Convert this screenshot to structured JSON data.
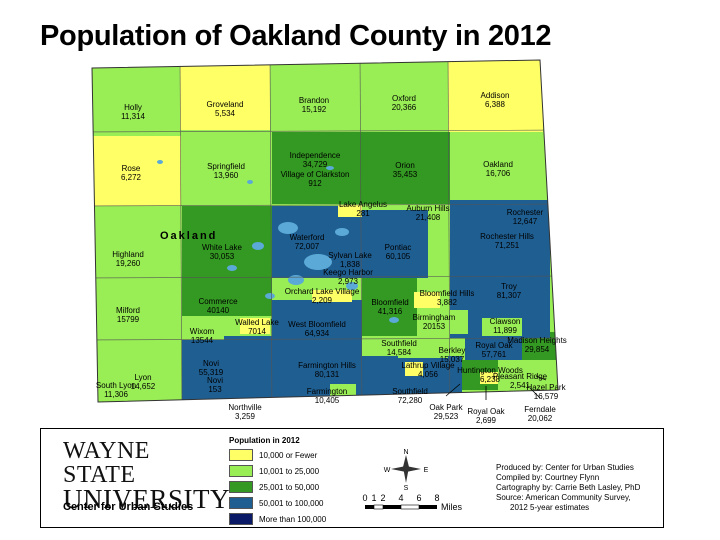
{
  "title": "Population of Oakland County in 2012",
  "county_label": "Oakland",
  "legend": {
    "title": "Population in 2012",
    "classes": [
      {
        "label": "10,000 or Fewer",
        "color": "#ffff66"
      },
      {
        "label": "10,001 to 25,000",
        "color": "#99ee55"
      },
      {
        "label": "25,001 to 50,000",
        "color": "#339922"
      },
      {
        "label": "50,001 to 100,000",
        "color": "#1f5e91"
      },
      {
        "label": "More than 100,000",
        "color": "#0a1a66"
      }
    ]
  },
  "logo": {
    "line1": "WAYNE STATE",
    "line2": "UNIVERSITY",
    "subtitle": "Center for Urban Studies"
  },
  "compass": {
    "n": "N",
    "s": "S",
    "e": "E",
    "w": "W"
  },
  "scale": {
    "ticks": [
      "0",
      "1",
      "2",
      "4",
      "6",
      "8"
    ],
    "unit": "Miles"
  },
  "credits": [
    "Produced by: Center for Urban Studies",
    "Compiled by: Courtney Flynn",
    "Cartography by: Carrie Beth Lasley, PhD",
    "Source: American Community Survey,",
    "2012 5-year estimates"
  ],
  "places": [
    {
      "name": "Holly",
      "pop": "11,314"
    },
    {
      "name": "Groveland",
      "pop": "5,534"
    },
    {
      "name": "Brandon",
      "pop": "15,192"
    },
    {
      "name": "Oxford",
      "pop": "20,366"
    },
    {
      "name": "Addison",
      "pop": "6,388"
    },
    {
      "name": "Rose",
      "pop": "6,272"
    },
    {
      "name": "Springfield",
      "pop": "13,960"
    },
    {
      "name": "Independence",
      "pop": "34,729"
    },
    {
      "name": "Village of Clarkston",
      "pop": "912"
    },
    {
      "name": "Orion",
      "pop": "35,453"
    },
    {
      "name": "Oakland",
      "pop": "16,706"
    },
    {
      "name": "Lake Angelus",
      "pop": "281"
    },
    {
      "name": "Auburn Hills",
      "pop": "21,408"
    },
    {
      "name": "Rochester",
      "pop": "12,647"
    },
    {
      "name": "Rochester Hills",
      "pop": "71,251"
    },
    {
      "name": "Highland",
      "pop": "19,260"
    },
    {
      "name": "White Lake",
      "pop": "30,053"
    },
    {
      "name": "Waterford",
      "pop": "72,007"
    },
    {
      "name": "Sylvan Lake",
      "pop": "1,838"
    },
    {
      "name": "Pontiac",
      "pop": "60,105"
    },
    {
      "name": "Keego Harbor",
      "pop": "2,973"
    },
    {
      "name": "Orchard Lake Village",
      "pop": "2,209"
    },
    {
      "name": "Bloomfield",
      "pop": "41,316"
    },
    {
      "name": "Bloomfield Hills",
      "pop": "3,882"
    },
    {
      "name": "Troy",
      "pop": "81,307"
    },
    {
      "name": "Milford",
      "pop": "15799"
    },
    {
      "name": "Commerce",
      "pop": "40140"
    },
    {
      "name": "Walled Lake",
      "pop": "7014"
    },
    {
      "name": "Wixom",
      "pop": "13544"
    },
    {
      "name": "West Bloomfield",
      "pop": "64,934"
    },
    {
      "name": "Birmingham",
      "pop": "20153"
    },
    {
      "name": "Clawson",
      "pop": "11,899"
    },
    {
      "name": "Madison Heights",
      "pop": "29,854"
    },
    {
      "name": "Southfield",
      "pop": "14,584"
    },
    {
      "name": "Berkley",
      "pop": "15,037"
    },
    {
      "name": "Royal Oak",
      "pop": "57,761"
    },
    {
      "name": "Lathrup Village",
      "pop": "4,056"
    },
    {
      "name": "Huntington Woods",
      "pop": "6,238"
    },
    {
      "name": "Pleasant Ridge",
      "pop": "2,541"
    },
    {
      "name": "Hazel Park",
      "pop": "16,579"
    },
    {
      "name": "Novi",
      "pop": "55,319"
    },
    {
      "name": "Novi",
      "pop": "153"
    },
    {
      "name": "Lyon",
      "pop": "14,652"
    },
    {
      "name": "South Lyon",
      "pop": "11,306"
    },
    {
      "name": "Farmington Hills",
      "pop": "80,131"
    },
    {
      "name": "Farmington",
      "pop": "10,405"
    },
    {
      "name": "Southfield",
      "pop": "72,280"
    },
    {
      "name": "Northville",
      "pop": "3,259"
    },
    {
      "name": "Oak Park",
      "pop": "29,523"
    },
    {
      "name": "Royal Oak",
      "pop": "2,699"
    },
    {
      "name": "Ferndale",
      "pop": "20,062"
    }
  ]
}
